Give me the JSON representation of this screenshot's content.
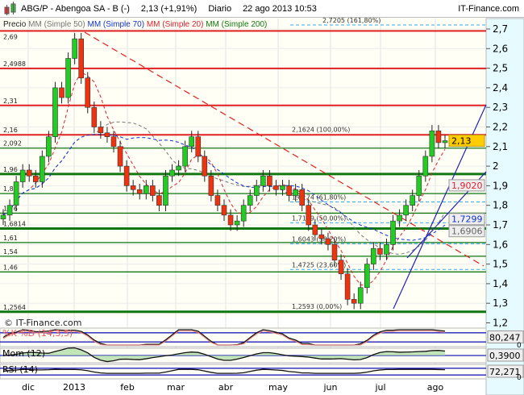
{
  "header": {
    "ticker": "ABG/P - Abengoa SA - B (-)",
    "last": "2,13 (+1,91%)",
    "period": "Diario",
    "datetime": "22 ago 2013 10:53",
    "brand": "IT-Finance.com"
  },
  "legend": {
    "price": "Precio",
    "ma1": "MM (Simple 50)",
    "ma2": "MM (Simple 70)",
    "ma3": "MM (Simple 20)",
    "ma4": "MM (Simple 200)"
  },
  "watermark": "© IT-Finance.com",
  "colors": {
    "up": "#22cc22",
    "down": "#ee3311",
    "resistance": "#e02020",
    "support": "#117711",
    "fib": "#33aaee",
    "ma50": "#777777",
    "ma70": "#1133cc",
    "ma20": "#dd2233",
    "channel": "#2222bb",
    "axis_bg": "#e6fbff",
    "last_badge": "#ffcc00"
  },
  "chart_data": {
    "type": "candlestick",
    "y_ticks": [
      "2,7",
      "2,6",
      "2,5",
      "2,4",
      "2,3",
      "2,2",
      "2,1",
      "2",
      "1,9",
      "1,8",
      "1,7",
      "1,6",
      "1,5",
      "1,4",
      "1,3",
      "1,2"
    ],
    "ylim": [
      1.2,
      2.7
    ],
    "x_ticks": [
      "dic",
      "2013",
      "feb",
      "mar",
      "abr",
      "may",
      "jun",
      "jul",
      "ago"
    ],
    "closes": [
      1.75,
      1.8,
      1.92,
      1.98,
      1.95,
      1.92,
      2.05,
      2.15,
      2.4,
      2.35,
      2.55,
      2.65,
      2.45,
      2.3,
      2.2,
      2.17,
      2.15,
      2.1,
      2.0,
      1.9,
      1.88,
      1.86,
      1.9,
      1.85,
      1.8,
      1.95,
      1.98,
      2.0,
      2.1,
      2.15,
      2.05,
      1.95,
      1.85,
      1.8,
      1.75,
      1.7,
      1.72,
      1.8,
      1.85,
      1.9,
      1.95,
      1.9,
      1.88,
      1.9,
      1.85,
      1.88,
      1.8,
      1.7,
      1.65,
      1.63,
      1.6,
      1.52,
      1.45,
      1.32,
      1.3,
      1.38,
      1.5,
      1.58,
      1.55,
      1.6,
      1.72,
      1.75,
      1.8,
      1.85,
      1.95,
      2.05,
      2.18,
      2.12,
      2.13
    ],
    "levels": [
      {
        "value": 2.69,
        "label": "2,69",
        "kind": "resistance"
      },
      {
        "value": 2.4988,
        "label": "2,4988",
        "kind": "resistance"
      },
      {
        "value": 2.31,
        "label": "2,31",
        "kind": "resistance"
      },
      {
        "value": 2.16,
        "label": "2,16",
        "kind": "resistance"
      },
      {
        "value": 2.092,
        "label": "2,092",
        "kind": "support"
      },
      {
        "value": 1.96,
        "label": "1,96",
        "kind": "support-strong"
      },
      {
        "value": 1.86,
        "label": "1,86",
        "kind": "support"
      },
      {
        "value": 1.76,
        "label": "1,76",
        "kind": "support"
      },
      {
        "value": 1.6814,
        "label": "1,6814",
        "kind": "support-strong"
      },
      {
        "value": 1.61,
        "label": "1,61",
        "kind": "support"
      },
      {
        "value": 1.54,
        "label": "1,54",
        "kind": "support"
      },
      {
        "value": 1.46,
        "label": "1,46",
        "kind": "support"
      },
      {
        "value": 1.2564,
        "label": "1,2564",
        "kind": "support-strong"
      }
    ],
    "fibonacci": [
      {
        "value": 2.7205,
        "label": "2,7205 (161,80%)"
      },
      {
        "value": 2.1624,
        "label": "2,1624 (100,00%)"
      },
      {
        "value": 1.8174,
        "label": "1,8174 (61,80%)"
      },
      {
        "value": 1.7109,
        "label": "1,7109 (50,00%)"
      },
      {
        "value": 1.6043,
        "label": "1,6043 (38,20%)"
      },
      {
        "value": 1.4725,
        "label": "1,4725 (23,60%)"
      },
      {
        "value": 1.2593,
        "label": "1,2593 (0,00%)"
      }
    ],
    "badges": [
      {
        "value": 2.13,
        "label": "2,13",
        "kind": "last"
      },
      {
        "value": 1.902,
        "label": "1,9020",
        "kind": "ma20"
      },
      {
        "value": 1.7299,
        "label": "1,7299",
        "kind": "ma70"
      },
      {
        "value": 1.6906,
        "label": "1,6906",
        "kind": "ma50"
      }
    ],
    "indicators": [
      {
        "name": "%K %D (14,3,5)",
        "value": "80,247",
        "zero": "0"
      },
      {
        "name": "Mom (12)",
        "value": "0,3900"
      },
      {
        "name": "RSI (14)",
        "value": "72,271",
        "zero": "0"
      }
    ]
  }
}
